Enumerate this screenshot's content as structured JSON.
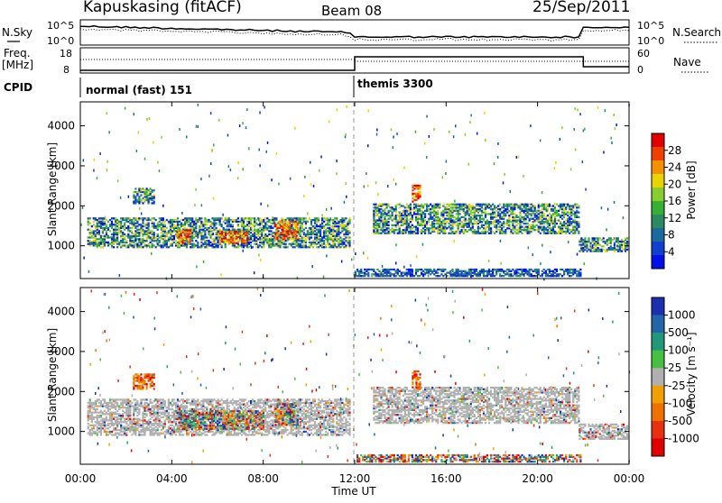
{
  "header": {
    "station": "Kapuskasing (fitACF)",
    "beam": "Beam 08",
    "date": "25/Sep/2011"
  },
  "top_panels": {
    "nsky_label": "N.Sky",
    "nsky_ticks": [
      "10^5",
      "10^0"
    ],
    "nsearch_label": "N.Search",
    "nsearch_ticks": [
      "10^5",
      "10^0"
    ],
    "freq_label_line1": "Freq.",
    "freq_label_line2": "[MHz]",
    "freq_ticks": [
      "18",
      "8"
    ],
    "nave_label": "Nave",
    "nave_ticks": [
      "60",
      "0"
    ],
    "cpid_label": "CPID",
    "cpid_modes": [
      {
        "name": "normal (fast) 151",
        "start_hour": 0
      },
      {
        "name": "themis 3300",
        "start_hour": 12
      }
    ]
  },
  "colorbars": {
    "power": {
      "label": "Power [dB]",
      "ticks": [
        "28",
        "24",
        "20",
        "16",
        "12",
        "8",
        "4"
      ],
      "colors": [
        "#e00000",
        "#f04000",
        "#f59000",
        "#e8d400",
        "#88cc30",
        "#35b035",
        "#2a8a60",
        "#1a6aa0",
        "#1040d0",
        "#0010e8"
      ]
    },
    "velocity": {
      "label": "Velocity [m s⁻¹]",
      "ticks": [
        "1000",
        "500",
        "100",
        "25",
        "-25",
        "-100",
        "-500",
        "-1000"
      ],
      "colors": [
        "#1a30b0",
        "#2066a8",
        "#22987a",
        "#45c040",
        "#b0b0b0",
        "#f0a000",
        "#f07000",
        "#e83010",
        "#e00000"
      ]
    }
  },
  "chart_data": [
    {
      "type": "heatmap",
      "name": "power",
      "ylabel": "Slant Range [km]",
      "ylim": [
        180,
        4600
      ],
      "xlim": [
        0,
        24
      ],
      "yticks": [
        "4000",
        "3000",
        "2000",
        "1000"
      ],
      "echo_regions": [
        {
          "t0": 0.3,
          "t1": 11.8,
          "r0": 950,
          "r1": 1700,
          "level": "mid"
        },
        {
          "t0": 2.3,
          "t1": 3.2,
          "r0": 2050,
          "r1": 2450,
          "level": "mid"
        },
        {
          "t0": 4.2,
          "t1": 4.8,
          "r0": 1050,
          "r1": 1400,
          "level": "high"
        },
        {
          "t0": 6.0,
          "t1": 7.3,
          "r0": 1050,
          "r1": 1350,
          "level": "high"
        },
        {
          "t0": 8.5,
          "t1": 9.5,
          "r0": 1150,
          "r1": 1600,
          "level": "high"
        },
        {
          "t0": 12.8,
          "t1": 21.8,
          "r0": 1300,
          "r1": 2050,
          "level": "mid"
        },
        {
          "t0": 14.5,
          "t1": 14.9,
          "r0": 2050,
          "r1": 2500,
          "level": "high"
        },
        {
          "t0": 21.8,
          "t1": 23.9,
          "r0": 850,
          "r1": 1200,
          "level": "mid"
        },
        {
          "t0": 12.0,
          "t1": 21.9,
          "r0": 230,
          "r1": 400,
          "level": "low"
        }
      ]
    },
    {
      "type": "heatmap",
      "name": "velocity",
      "ylabel": "Slant Range [km]",
      "ylim": [
        180,
        4600
      ],
      "xlim": [
        0,
        24
      ],
      "yticks": [
        "4000",
        "3000",
        "2000",
        "1000"
      ],
      "xticks": [
        "00:00",
        "04:00",
        "08:00",
        "12:00",
        "16:00",
        "20:00",
        "00:00"
      ],
      "xlabel": "Time UT",
      "echo_regions": [
        {
          "t0": 0.3,
          "t1": 11.8,
          "r0": 900,
          "r1": 1800,
          "level": "ground"
        },
        {
          "t0": 2.3,
          "t1": 3.2,
          "r0": 2050,
          "r1": 2450,
          "level": "neg"
        },
        {
          "t0": 4.2,
          "t1": 8.0,
          "r0": 1050,
          "r1": 1500,
          "level": "mixed"
        },
        {
          "t0": 8.5,
          "t1": 9.5,
          "r0": 1150,
          "r1": 1700,
          "level": "mixed"
        },
        {
          "t0": 12.8,
          "t1": 21.8,
          "r0": 1200,
          "r1": 2100,
          "level": "ground"
        },
        {
          "t0": 14.5,
          "t1": 14.9,
          "r0": 2050,
          "r1": 2500,
          "level": "neg"
        },
        {
          "t0": 21.8,
          "t1": 23.9,
          "r0": 800,
          "r1": 1200,
          "level": "ground"
        },
        {
          "t0": 12.0,
          "t1": 21.9,
          "r0": 230,
          "r1": 400,
          "level": "mixed"
        }
      ]
    }
  ]
}
